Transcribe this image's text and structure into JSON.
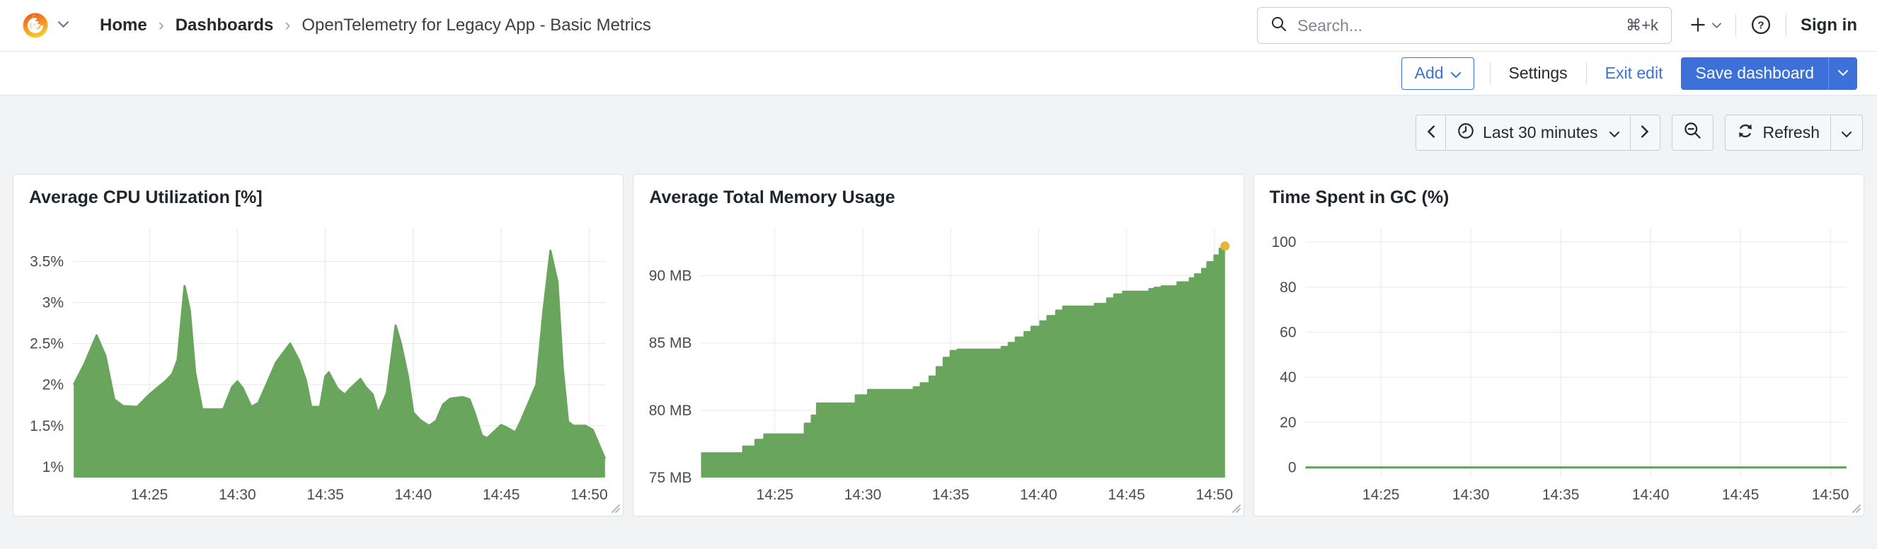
{
  "header": {
    "breadcrumb": [
      {
        "label": "Home"
      },
      {
        "label": "Dashboards"
      },
      {
        "label": "OpenTelemetry for Legacy App - Basic Metrics"
      }
    ],
    "search": {
      "placeholder": "Search...",
      "shortcut": "⌘+k"
    },
    "sign_in_label": "Sign in"
  },
  "toolbar": {
    "add_label": "Add",
    "settings_label": "Settings",
    "exit_edit_label": "Exit edit",
    "save_label": "Save dashboard"
  },
  "timebar": {
    "range_label": "Last 30 minutes",
    "refresh_label": "Refresh"
  },
  "colors": {
    "accent_blue": "#3d71d9",
    "series_green": "#69a55c",
    "gc_line_green": "#56a64b",
    "latest_marker_yellow": "#e8b339",
    "page_bg": "#f2f3f5",
    "panel_bg": "#ffffff",
    "grid_line": "#e7e8ea",
    "text": "#24292e"
  },
  "chart_data": [
    {
      "type": "area",
      "title": "Average CPU Utilization [%]",
      "x_range": [
        20.65,
        50.95
      ],
      "y_range": [
        0.87,
        3.9
      ],
      "grid": true,
      "legend": "none",
      "x_ticks": [
        {
          "v": 25,
          "label": "14:25"
        },
        {
          "v": 30,
          "label": "14:30"
        },
        {
          "v": 35,
          "label": "14:35"
        },
        {
          "v": 40,
          "label": "14:40"
        },
        {
          "v": 45,
          "label": "14:45"
        },
        {
          "v": 50,
          "label": "14:50"
        }
      ],
      "y_ticks": [
        {
          "v": 1,
          "label": "1%"
        },
        {
          "v": 1.5,
          "label": "1.5%"
        },
        {
          "v": 2,
          "label": "2%"
        },
        {
          "v": 2.5,
          "label": "2.5%"
        },
        {
          "v": 3,
          "label": "3%"
        },
        {
          "v": 3.5,
          "label": "3.5%"
        }
      ],
      "series": [
        {
          "name": "cpu",
          "color": "#69a55c",
          "fill": "#69a55c",
          "points": [
            [
              20.7,
              2.0
            ],
            [
              21.3,
              2.25
            ],
            [
              22.0,
              2.6
            ],
            [
              22.5,
              2.35
            ],
            [
              23.0,
              1.82
            ],
            [
              23.5,
              1.74
            ],
            [
              24.3,
              1.73
            ],
            [
              25.0,
              1.88
            ],
            [
              25.5,
              1.97
            ],
            [
              25.9,
              2.04
            ],
            [
              26.3,
              2.13
            ],
            [
              26.6,
              2.3
            ],
            [
              27.0,
              3.2
            ],
            [
              27.3,
              2.9
            ],
            [
              27.6,
              2.15
            ],
            [
              28.0,
              1.7
            ],
            [
              29.2,
              1.7
            ],
            [
              29.7,
              1.97
            ],
            [
              30.0,
              2.04
            ],
            [
              30.3,
              1.96
            ],
            [
              30.8,
              1.73
            ],
            [
              31.2,
              1.78
            ],
            [
              32.2,
              2.27
            ],
            [
              33.0,
              2.5
            ],
            [
              33.5,
              2.3
            ],
            [
              33.9,
              2.05
            ],
            [
              34.2,
              1.73
            ],
            [
              34.7,
              1.73
            ],
            [
              35.0,
              2.1
            ],
            [
              35.2,
              2.15
            ],
            [
              35.7,
              1.95
            ],
            [
              36.1,
              1.88
            ],
            [
              36.5,
              1.97
            ],
            [
              37.0,
              2.07
            ],
            [
              37.3,
              1.97
            ],
            [
              37.7,
              1.88
            ],
            [
              38.0,
              1.65
            ],
            [
              38.5,
              1.9
            ],
            [
              39.0,
              2.72
            ],
            [
              39.3,
              2.5
            ],
            [
              39.7,
              2.1
            ],
            [
              40.0,
              1.66
            ],
            [
              40.4,
              1.57
            ],
            [
              40.9,
              1.5
            ],
            [
              41.3,
              1.56
            ],
            [
              41.7,
              1.76
            ],
            [
              42.1,
              1.83
            ],
            [
              42.8,
              1.85
            ],
            [
              43.2,
              1.82
            ],
            [
              43.5,
              1.65
            ],
            [
              43.9,
              1.38
            ],
            [
              44.2,
              1.35
            ],
            [
              44.7,
              1.45
            ],
            [
              45.0,
              1.51
            ],
            [
              45.3,
              1.48
            ],
            [
              45.8,
              1.42
            ],
            [
              46.1,
              1.55
            ],
            [
              46.5,
              1.75
            ],
            [
              47.0,
              2.0
            ],
            [
              47.4,
              2.9
            ],
            [
              47.8,
              3.63
            ],
            [
              48.2,
              3.25
            ],
            [
              48.5,
              2.2
            ],
            [
              48.8,
              1.55
            ],
            [
              49.1,
              1.5
            ],
            [
              49.8,
              1.5
            ],
            [
              50.2,
              1.45
            ],
            [
              50.5,
              1.3
            ],
            [
              50.9,
              1.1
            ]
          ]
        }
      ]
    },
    {
      "type": "area",
      "title": "Average Total Memory Usage",
      "x_range": [
        20.8,
        50.65
      ],
      "y_range": [
        75,
        93.5
      ],
      "grid": true,
      "legend": "none",
      "x_ticks": [
        {
          "v": 25,
          "label": "14:25"
        },
        {
          "v": 30,
          "label": "14:30"
        },
        {
          "v": 35,
          "label": "14:35"
        },
        {
          "v": 40,
          "label": "14:40"
        },
        {
          "v": 45,
          "label": "14:45"
        },
        {
          "v": 50,
          "label": "14:50"
        }
      ],
      "y_ticks": [
        {
          "v": 75,
          "label": "75 MB"
        },
        {
          "v": 80,
          "label": "80 MB"
        },
        {
          "v": 85,
          "label": "85 MB"
        },
        {
          "v": 90,
          "label": "90 MB"
        }
      ],
      "series": [
        {
          "name": "memory",
          "color": "#69a55c",
          "fill": "#69a55c",
          "step": true,
          "end_marker": "#e8b339",
          "points": [
            [
              20.8,
              76.8
            ],
            [
              23.2,
              77.3
            ],
            [
              23.9,
              77.8
            ],
            [
              24.4,
              78.2
            ],
            [
              26.7,
              79.0
            ],
            [
              27.1,
              79.6
            ],
            [
              27.4,
              80.5
            ],
            [
              29.6,
              81.1
            ],
            [
              30.3,
              81.5
            ],
            [
              32.9,
              81.7
            ],
            [
              33.3,
              82.0
            ],
            [
              33.8,
              82.5
            ],
            [
              34.2,
              83.2
            ],
            [
              34.6,
              83.9
            ],
            [
              35.0,
              84.4
            ],
            [
              35.4,
              84.5
            ],
            [
              37.9,
              84.7
            ],
            [
              38.3,
              85.0
            ],
            [
              38.7,
              85.4
            ],
            [
              39.2,
              85.8
            ],
            [
              39.6,
              86.2
            ],
            [
              40.1,
              86.6
            ],
            [
              40.5,
              87.0
            ],
            [
              41.0,
              87.4
            ],
            [
              41.4,
              87.7
            ],
            [
              43.2,
              87.9
            ],
            [
              43.9,
              88.3
            ],
            [
              44.3,
              88.6
            ],
            [
              44.8,
              88.8
            ],
            [
              46.3,
              89.0
            ],
            [
              46.6,
              89.1
            ],
            [
              47.0,
              89.2
            ],
            [
              47.9,
              89.5
            ],
            [
              48.6,
              89.8
            ],
            [
              48.9,
              90.1
            ],
            [
              49.3,
              90.5
            ],
            [
              49.6,
              91.0
            ],
            [
              50.0,
              91.5
            ],
            [
              50.3,
              92.0
            ],
            [
              50.6,
              92.2
            ]
          ]
        }
      ]
    },
    {
      "type": "line",
      "title": "Time Spent in GC (%)",
      "x_range": [
        20.8,
        50.9
      ],
      "y_range": [
        -4.5,
        106
      ],
      "grid": true,
      "legend": "none",
      "x_ticks": [
        {
          "v": 25,
          "label": "14:25"
        },
        {
          "v": 30,
          "label": "14:30"
        },
        {
          "v": 35,
          "label": "14:35"
        },
        {
          "v": 40,
          "label": "14:40"
        },
        {
          "v": 45,
          "label": "14:45"
        },
        {
          "v": 50,
          "label": "14:50"
        }
      ],
      "y_ticks": [
        {
          "v": 0,
          "label": "0"
        },
        {
          "v": 20,
          "label": "20"
        },
        {
          "v": 40,
          "label": "40"
        },
        {
          "v": 60,
          "label": "60"
        },
        {
          "v": 80,
          "label": "80"
        },
        {
          "v": 100,
          "label": "100"
        }
      ],
      "series": [
        {
          "name": "gc",
          "color": "#56a64b",
          "points": [
            [
              20.8,
              0
            ],
            [
              50.9,
              0
            ]
          ]
        }
      ]
    }
  ]
}
